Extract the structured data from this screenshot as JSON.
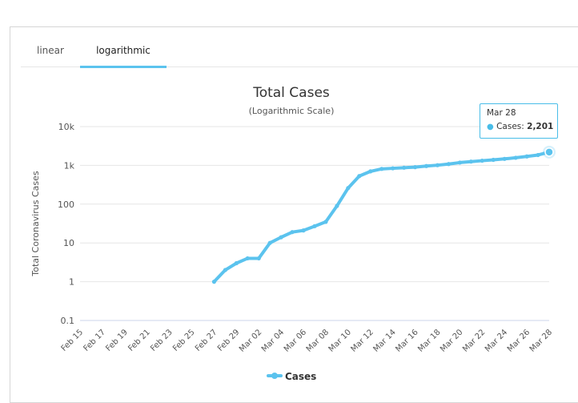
{
  "tabs": [
    {
      "label": "linear",
      "active": false
    },
    {
      "label": "logarithmic",
      "active": true
    }
  ],
  "chart_data": {
    "type": "line",
    "title": "Total Cases",
    "subtitle": "(Logarithmic Scale)",
    "ylabel": "Total Coronavirus Cases",
    "xlabel": "",
    "yscale": "log",
    "ylim": [
      0.1,
      10000
    ],
    "y_tick_labels": [
      "0.1",
      "1",
      "10",
      "100",
      "1k",
      "10k"
    ],
    "x_tick_labels": [
      "Feb 15",
      "Feb 17",
      "Feb 19",
      "Feb 21",
      "Feb 23",
      "Feb 25",
      "Feb 27",
      "Feb 29",
      "Mar 02",
      "Mar 04",
      "Mar 06",
      "Mar 08",
      "Mar 10",
      "Mar 12",
      "Mar 14",
      "Mar 16",
      "Mar 18",
      "Mar 20",
      "Mar 22",
      "Mar 24",
      "Mar 26",
      "Mar 28"
    ],
    "grid": "horizontal",
    "legend": "bottom-center",
    "series": [
      {
        "name": "Cases",
        "color": "#5bc3ee",
        "x": [
          "Feb 27",
          "Feb 28",
          "Feb 29",
          "Mar 01",
          "Mar 02",
          "Mar 03",
          "Mar 04",
          "Mar 05",
          "Mar 06",
          "Mar 07",
          "Mar 08",
          "Mar 09",
          "Mar 10",
          "Mar 11",
          "Mar 12",
          "Mar 13",
          "Mar 14",
          "Mar 15",
          "Mar 16",
          "Mar 17",
          "Mar 18",
          "Mar 19",
          "Mar 20",
          "Mar 21",
          "Mar 22",
          "Mar 23",
          "Mar 24",
          "Mar 25",
          "Mar 26",
          "Mar 27",
          "Mar 28"
        ],
        "values": [
          1,
          2,
          3,
          4,
          4,
          10,
          14,
          19,
          21,
          27,
          35,
          90,
          260,
          530,
          700,
          810,
          840,
          870,
          900,
          960,
          1010,
          1080,
          1180,
          1250,
          1320,
          1390,
          1470,
          1570,
          1700,
          1850,
          2201
        ]
      }
    ]
  },
  "tooltip": {
    "date": "Mar 28",
    "series_label": "Cases:",
    "value": "2,201"
  }
}
